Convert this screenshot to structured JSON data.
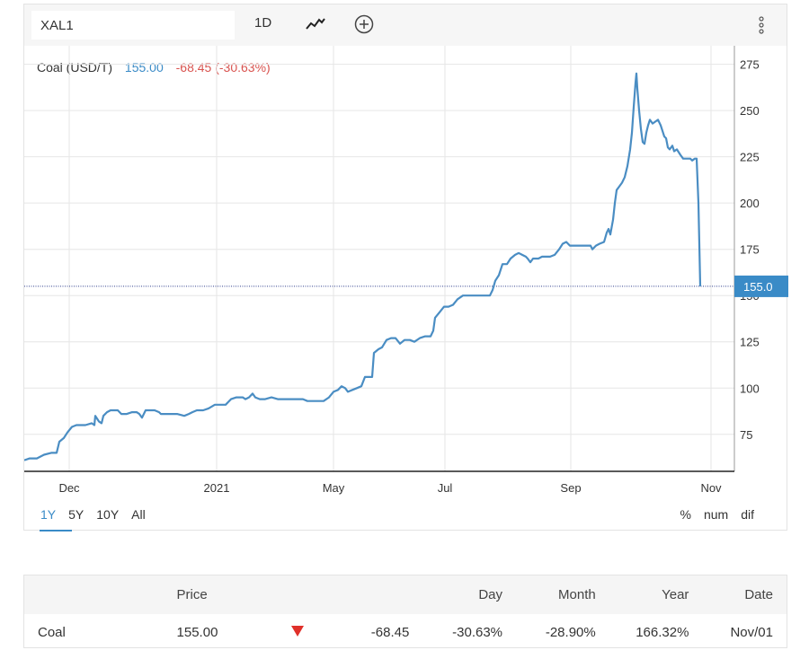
{
  "toolbar": {
    "symbol": "XAL1",
    "interval": "1D",
    "chart_type_icon": "line-chart-icon",
    "add_icon": "plus-circle-icon",
    "menu_icon": "vertical-dots-icon"
  },
  "legend": {
    "name": "Coal (USD/T)",
    "price": "155.00",
    "change": "-68.45 (-30.63%)"
  },
  "colors": {
    "line": "#4a8dc3",
    "up": "#3a8bc7",
    "down": "#d9534f",
    "toolbar_bg": "#f6f6f6",
    "price_tag": "#3a8bc7"
  },
  "price_tag": "155.0",
  "range_tabs": [
    "1Y",
    "5Y",
    "10Y",
    "All"
  ],
  "active_range": "1Y",
  "mode_tabs": [
    "%",
    "num",
    "dif"
  ],
  "chart_data": {
    "type": "line",
    "series": [
      {
        "name": "Coal (USD/T)",
        "points": [
          [
            0,
            61
          ],
          [
            6,
            62
          ],
          [
            14,
            62
          ],
          [
            22,
            64
          ],
          [
            30,
            65
          ],
          [
            36,
            65
          ],
          [
            39,
            71
          ],
          [
            44,
            73
          ],
          [
            48,
            76
          ],
          [
            53,
            79
          ],
          [
            58,
            80
          ],
          [
            63,
            80
          ],
          [
            68,
            80
          ],
          [
            75,
            81
          ],
          [
            78,
            80
          ],
          [
            79,
            85
          ],
          [
            83,
            82
          ],
          [
            86,
            81
          ],
          [
            88,
            85
          ],
          [
            92,
            87
          ],
          [
            96,
            88
          ],
          [
            104,
            88
          ],
          [
            108,
            86
          ],
          [
            114,
            86
          ],
          [
            120,
            87
          ],
          [
            125,
            87
          ],
          [
            128,
            86
          ],
          [
            131,
            84
          ],
          [
            135,
            88
          ],
          [
            138,
            88
          ],
          [
            145,
            88
          ],
          [
            150,
            87
          ],
          [
            152,
            86
          ],
          [
            160,
            86
          ],
          [
            170,
            86
          ],
          [
            178,
            85
          ],
          [
            183,
            86
          ],
          [
            187,
            87
          ],
          [
            192,
            88
          ],
          [
            199,
            88
          ],
          [
            205,
            89
          ],
          [
            212,
            91
          ],
          [
            218,
            91
          ],
          [
            224,
            91
          ],
          [
            230,
            94
          ],
          [
            236,
            95
          ],
          [
            243,
            95
          ],
          [
            246,
            94
          ],
          [
            250,
            95
          ],
          [
            254,
            97
          ],
          [
            257,
            95
          ],
          [
            262,
            94
          ],
          [
            268,
            94
          ],
          [
            275,
            95
          ],
          [
            282,
            94
          ],
          [
            290,
            94
          ],
          [
            298,
            94
          ],
          [
            305,
            94
          ],
          [
            310,
            94
          ],
          [
            315,
            93
          ],
          [
            322,
            93
          ],
          [
            328,
            93
          ],
          [
            333,
            93
          ],
          [
            339,
            95
          ],
          [
            344,
            98
          ],
          [
            349,
            99
          ],
          [
            353,
            101
          ],
          [
            357,
            100
          ],
          [
            360,
            98
          ],
          [
            365,
            99
          ],
          [
            370,
            100
          ],
          [
            375,
            101
          ],
          [
            379,
            106
          ],
          [
            384,
            106
          ],
          [
            387,
            106
          ],
          [
            389,
            119
          ],
          [
            394,
            121
          ],
          [
            398,
            122
          ],
          [
            403,
            126
          ],
          [
            408,
            127
          ],
          [
            413,
            127
          ],
          [
            418,
            124
          ],
          [
            423,
            126
          ],
          [
            429,
            126
          ],
          [
            434,
            125
          ],
          [
            440,
            127
          ],
          [
            446,
            128
          ],
          [
            452,
            128
          ],
          [
            455,
            131
          ],
          [
            457,
            138
          ],
          [
            462,
            141
          ],
          [
            467,
            144
          ],
          [
            472,
            144
          ],
          [
            477,
            145
          ],
          [
            482,
            148
          ],
          [
            488,
            150
          ],
          [
            495,
            150
          ],
          [
            500,
            150
          ],
          [
            507,
            150
          ],
          [
            513,
            150
          ],
          [
            518,
            150
          ],
          [
            521,
            153
          ],
          [
            524,
            158
          ],
          [
            528,
            161
          ],
          [
            532,
            167
          ],
          [
            537,
            167
          ],
          [
            541,
            170
          ],
          [
            546,
            172
          ],
          [
            550,
            173
          ],
          [
            554,
            172
          ],
          [
            558,
            171
          ],
          [
            560,
            170
          ],
          [
            563,
            168
          ],
          [
            566,
            170
          ],
          [
            572,
            170
          ],
          [
            576,
            171
          ],
          [
            580,
            171
          ],
          [
            585,
            171
          ],
          [
            590,
            172
          ],
          [
            595,
            175
          ],
          [
            599,
            178
          ],
          [
            603,
            179
          ],
          [
            607,
            177
          ],
          [
            613,
            177
          ],
          [
            619,
            177
          ],
          [
            625,
            177
          ],
          [
            630,
            177
          ],
          [
            632,
            175
          ],
          [
            636,
            177
          ],
          [
            640,
            178
          ],
          [
            645,
            179
          ],
          [
            648,
            184
          ],
          [
            650,
            186
          ],
          [
            652,
            183
          ],
          [
            655,
            191
          ],
          [
            657,
            200
          ],
          [
            659,
            207
          ],
          [
            662,
            209
          ],
          [
            665,
            211
          ],
          [
            668,
            214
          ],
          [
            671,
            220
          ],
          [
            674,
            229
          ],
          [
            676,
            238
          ],
          [
            678,
            252
          ],
          [
            680,
            265
          ],
          [
            681,
            270
          ],
          [
            682,
            262
          ],
          [
            684,
            250
          ],
          [
            686,
            240
          ],
          [
            688,
            233
          ],
          [
            690,
            232
          ],
          [
            692,
            238
          ],
          [
            694,
            242
          ],
          [
            696,
            245
          ],
          [
            699,
            243
          ],
          [
            702,
            244
          ],
          [
            705,
            245
          ],
          [
            708,
            242
          ],
          [
            710,
            239
          ],
          [
            712,
            236
          ],
          [
            714,
            235
          ],
          [
            716,
            230
          ],
          [
            718,
            229
          ],
          [
            721,
            231
          ],
          [
            723,
            228
          ],
          [
            726,
            229
          ],
          [
            730,
            226
          ],
          [
            733,
            224
          ],
          [
            737,
            224
          ],
          [
            741,
            224
          ],
          [
            743,
            223
          ],
          [
            746,
            224
          ],
          [
            748,
            224
          ],
          [
            750,
            200
          ],
          [
            752,
            155
          ]
        ]
      }
    ],
    "x_tick_labels": [
      "Dec",
      "2021",
      "May",
      "Jul",
      "Sep",
      "Nov"
    ],
    "y_tick_labels": [
      75,
      100,
      125,
      150,
      175,
      200,
      225,
      250,
      275
    ],
    "ylim": [
      55,
      285
    ],
    "last_value": 155.0,
    "grid": true
  },
  "table": {
    "headers": [
      "",
      "Price",
      "",
      "",
      "Day",
      "Month",
      "Year",
      "Date"
    ],
    "rows": [
      {
        "name": "Coal",
        "price": "155.00",
        "arrow_icon": "down-triangle-icon",
        "change": "-68.45",
        "day": "-30.63%",
        "month": "-28.90%",
        "year": "166.32%",
        "date": "Nov/01"
      }
    ]
  }
}
